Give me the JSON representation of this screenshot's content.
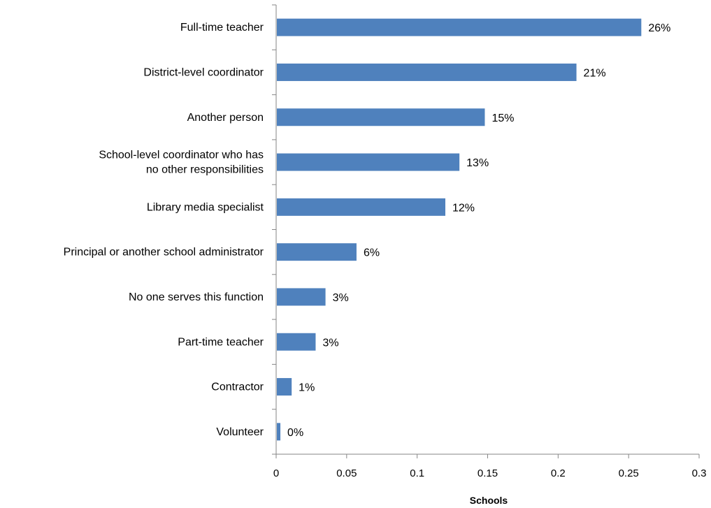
{
  "chart_data": {
    "type": "bar",
    "orientation": "horizontal",
    "categories": [
      [
        "Full-time teacher"
      ],
      [
        "District-level coordinator"
      ],
      [
        "Another person"
      ],
      [
        "School-level coordinator who has",
        "no other responsibilities"
      ],
      [
        "Library media specialist"
      ],
      [
        "Principal or another school administrator"
      ],
      [
        "No one serves this function"
      ],
      [
        "Part-time teacher"
      ],
      [
        "Contractor"
      ],
      [
        "Volunteer"
      ]
    ],
    "values": [
      0.259,
      0.213,
      0.148,
      0.13,
      0.12,
      0.057,
      0.035,
      0.028,
      0.011,
      0.003
    ],
    "data_labels": [
      "26%",
      "21%",
      "15%",
      "13%",
      "12%",
      "6%",
      "3%",
      "3%",
      "1%",
      "0%"
    ],
    "title": "",
    "xlabel": "Schools",
    "ylabel": "",
    "xlim": [
      0,
      0.3
    ],
    "x_ticks": [
      0,
      0.05,
      0.1,
      0.15,
      0.2,
      0.25,
      0.3
    ],
    "x_tick_labels": [
      "0",
      "0.05",
      "0.1",
      "0.15",
      "0.2",
      "0.25",
      "0.3"
    ],
    "grid": false,
    "legend": "none",
    "bar_color": "#4F81BD",
    "axis_color": "#868686"
  }
}
